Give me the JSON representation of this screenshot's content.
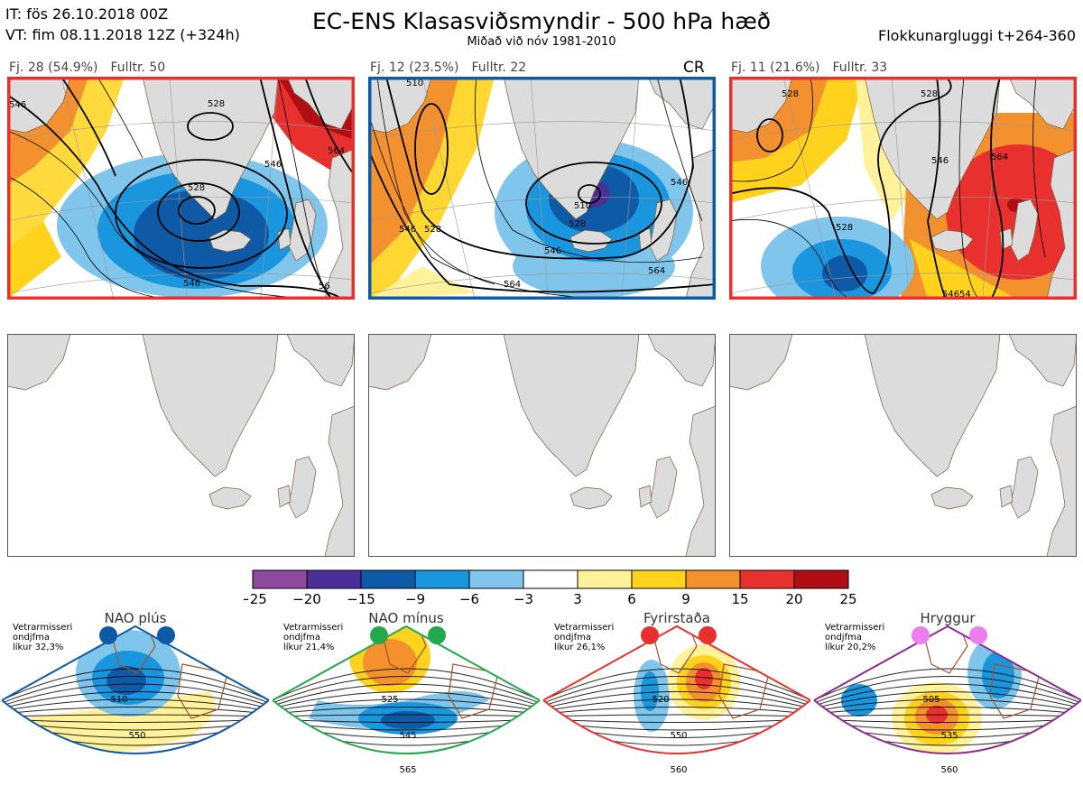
{
  "header": {
    "it": "IT: fös 26.10.2018 00Z",
    "vt": "VT: fim 08.11.2018 12Z  (+324h)",
    "title": "EC-ENS Klasasviðsmyndir - 500 hPa hæð",
    "subtitle": "Miðað við nóv 1981-2010",
    "window": "Flokkunargluggi t+264-360"
  },
  "clusters": [
    {
      "label": "Fj. 28 (54.9%)",
      "rep": "Fulltr. 50",
      "tag": "",
      "border": "#e8312f",
      "contour_labels": [
        "546",
        "528",
        "546",
        "528",
        "546",
        "564",
        "56"
      ]
    },
    {
      "label": "Fj. 12 (23.5%)",
      "rep": "Fulltr. 22",
      "tag": "CR",
      "border": "#0e5aa7",
      "contour_labels": [
        "510",
        "546",
        "528",
        "510",
        "528",
        "546",
        "564",
        "564",
        "546"
      ]
    },
    {
      "label": "Fj. 11 (21.6%)",
      "rep": "Fulltr. 33",
      "tag": "",
      "border": "#e8312f",
      "contour_labels": [
        "528",
        "528",
        "546",
        "564",
        "528",
        "546",
        "54"
      ]
    }
  ],
  "colorbar": {
    "ticks": [
      "−25",
      "−20",
      "−15",
      "−9",
      "−6",
      "−3",
      "3",
      "6",
      "9",
      "15",
      "20",
      "25"
    ],
    "colors": [
      "#8e4a9e",
      "#4b2f97",
      "#0e5aa7",
      "#1a96de",
      "#80c6ec",
      "#ffffff",
      "#fff29a",
      "#ffd31d",
      "#f4912f",
      "#e8312f",
      "#b00e15"
    ]
  },
  "regimes": [
    {
      "title": "NAO plús",
      "season": "Vetrarmisseri",
      "type": "ondjfma",
      "prob": "líkur 32,3%",
      "color": "#0e5aa7",
      "dot_color": "#0e5aa7",
      "contour_labels": [
        "510",
        "550"
      ]
    },
    {
      "title": "NAO mínus",
      "season": "Vetrarmisseri",
      "type": "ondjfma",
      "prob": "líkur 21,4%",
      "color": "#22a94b",
      "dot_color": "#22a94b",
      "contour_labels": [
        "525",
        "545",
        "565"
      ]
    },
    {
      "title": "Fyrirstaða",
      "season": "Vetrarmisseri",
      "type": "ondjfma",
      "prob": "líkur 26,1%",
      "color": "#e8312f",
      "dot_color": "#e8312f",
      "contour_labels": [
        "520",
        "550",
        "560"
      ]
    },
    {
      "title": "Hryggur",
      "season": "Vetrarmisseri",
      "type": "ondjfma",
      "prob": "líkur 20,2%",
      "color": "#8e2a8f",
      "dot_color": "#ee7ef0",
      "contour_labels": [
        "505",
        "535",
        "560"
      ]
    }
  ]
}
